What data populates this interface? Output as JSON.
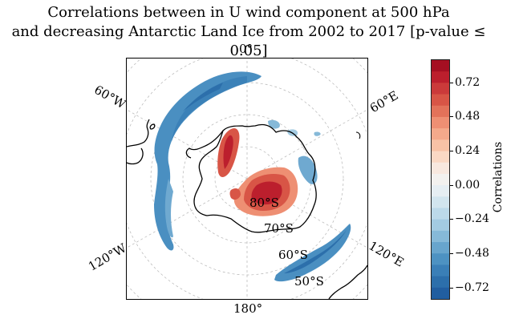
{
  "title": {
    "line1": "Correlations between in U wind component at 500 hPa",
    "line2": "and decreasing Antarctic Land Ice from 2002 to 2017 [p-value ≤ 0.05]"
  },
  "map": {
    "projection": "south polar stereographic",
    "longitude_labels": {
      "lon_0": "0°",
      "lon_60e": "60°E",
      "lon_120e": "120°E",
      "lon_180": "180°",
      "lon_120w": "120°W",
      "lon_60w": "60°W"
    },
    "latitude_labels": {
      "lat_80s": "80°S",
      "lat_70s": "70°S",
      "lat_60s": "60°S",
      "lat_50s": "50°S"
    },
    "gridlines": true,
    "coastline_color": "#000000"
  },
  "colorbar": {
    "label": "Correlations",
    "ticks": [
      "0.72",
      "0.48",
      "0.24",
      "0.00",
      "−0.24",
      "−0.48",
      "−0.72"
    ],
    "range": [
      -0.84,
      0.84
    ],
    "colormap": "RdBu_r",
    "colors_top_to_bottom": [
      "#a50f22",
      "#bc1f2d",
      "#cb3a3a",
      "#d85546",
      "#e3725a",
      "#ee8f73",
      "#f4a98b",
      "#f8c2a6",
      "#fad8c4",
      "#f8e8df",
      "#f3f1ef",
      "#e6eef3",
      "#d2e5ef",
      "#bcd9ea",
      "#a3cbe2",
      "#86b9d8",
      "#68a5cd",
      "#4d92c2",
      "#3a7fb7",
      "#2c6fab",
      "#215ea0"
    ],
    "positive_color": "#cf4d3f",
    "negative_color": "#4a8fc1"
  }
}
